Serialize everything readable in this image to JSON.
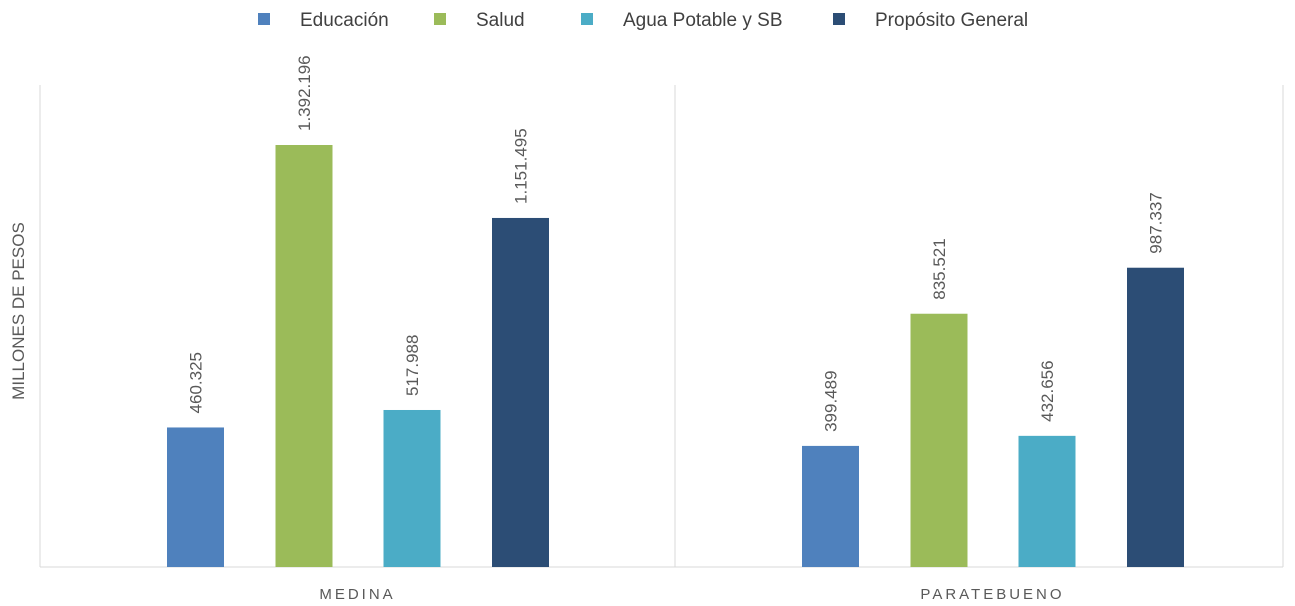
{
  "chart_data": {
    "type": "bar",
    "title": "",
    "xlabel": "",
    "ylabel": "MILLONES DE PESOS",
    "categories": [
      "MEDINA",
      "PARATEBUENO"
    ],
    "series": [
      {
        "name": "Educación",
        "color": "#4F81BD",
        "values": [
          460325,
          399489
        ],
        "labels": [
          "460.325",
          "399.489"
        ]
      },
      {
        "name": "Salud",
        "color": "#9BBB59",
        "values": [
          1392196,
          835521
        ],
        "labels": [
          "1.392.196",
          "835.521"
        ]
      },
      {
        "name": "Agua Potable y SB",
        "color": "#4BACC6",
        "values": [
          517988,
          432656
        ],
        "labels": [
          "517.988",
          "432.656"
        ]
      },
      {
        "name": "Propósito General",
        "color": "#2C4D75",
        "values": [
          1151495,
          987337
        ],
        "labels": [
          "1.151.495",
          "987.337"
        ]
      }
    ],
    "ylim": [
      0,
      1600000
    ],
    "grid": false,
    "legend_position": "top"
  }
}
